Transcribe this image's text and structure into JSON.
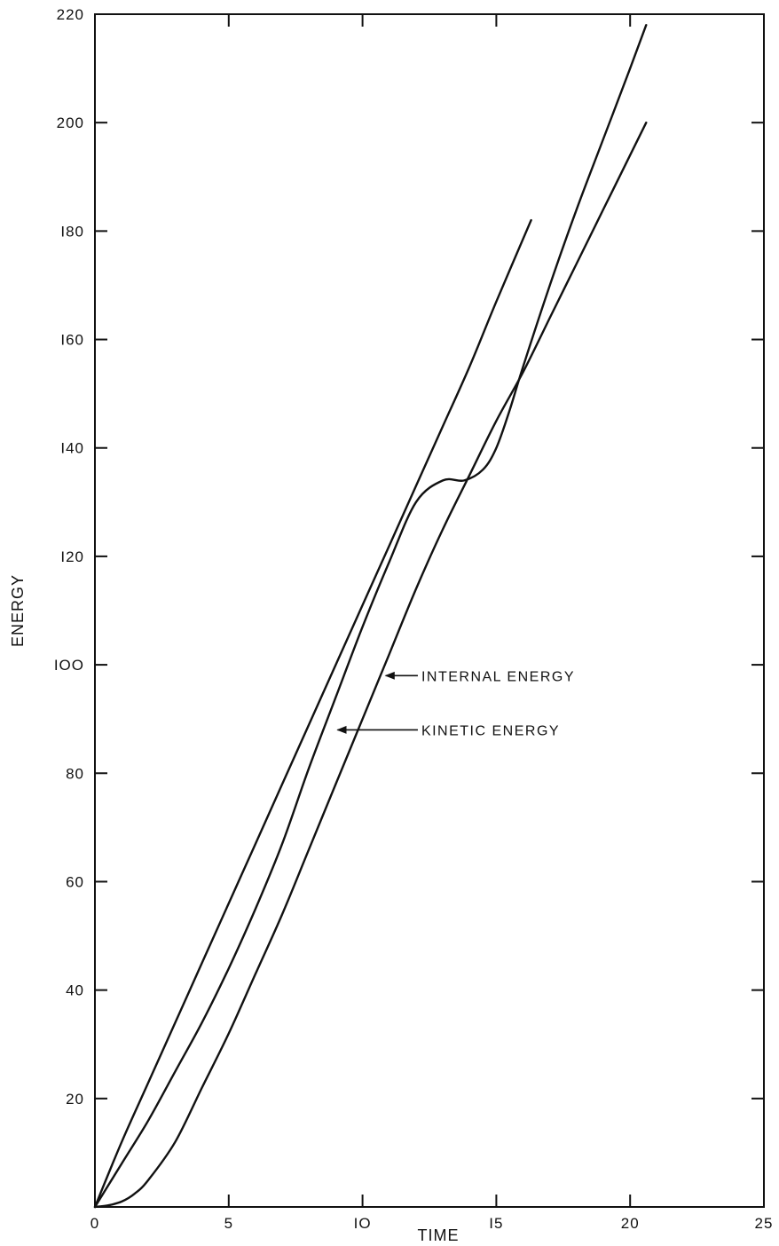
{
  "chart_data": {
    "type": "line",
    "title": "",
    "xlabel": "TIME",
    "ylabel": "ENERGY",
    "xlim": [
      0,
      25
    ],
    "ylim": [
      0,
      220
    ],
    "x_ticks": [
      0,
      5,
      10,
      15,
      20,
      25
    ],
    "x_tick_labels": [
      "0",
      "5",
      "IO",
      "I5",
      "20",
      "25"
    ],
    "y_ticks": [
      20,
      40,
      60,
      80,
      100,
      120,
      140,
      160,
      180,
      200,
      220
    ],
    "y_tick_labels": [
      "20",
      "40",
      "60",
      "80",
      "IOO",
      "I20",
      "I40",
      "I60",
      "I80",
      "200",
      "220"
    ],
    "grid": false,
    "ink_color": "#111111",
    "series": [
      {
        "key": "upper",
        "x": [
          0,
          1,
          2,
          3,
          4,
          5,
          6,
          7,
          8,
          9,
          10,
          11,
          12,
          13,
          14,
          15,
          16.3
        ],
        "y": [
          0,
          12,
          23,
          34,
          45,
          56,
          67,
          78,
          89,
          100,
          111,
          122,
          133,
          144,
          155,
          167,
          182
        ]
      },
      {
        "name": "KINETIC ENERGY",
        "key": "kinetic",
        "x": [
          0,
          1,
          2,
          3,
          4,
          5,
          6,
          7,
          8,
          9,
          10,
          11,
          12,
          13,
          13.8,
          14.5,
          15,
          15.5,
          16,
          17,
          18,
          19,
          20,
          20.6
        ],
        "y": [
          0,
          8,
          16,
          25,
          34,
          44,
          55,
          67,
          81,
          94,
          107,
          119,
          130,
          134,
          134,
          136,
          140,
          147,
          155,
          170,
          184,
          197,
          210,
          218
        ],
        "label_anchor": [
          9,
          88
        ]
      },
      {
        "name": "INTERNAL ENERGY",
        "key": "internal",
        "x": [
          0,
          0.5,
          1,
          1.5,
          2,
          3,
          4,
          5,
          6,
          7,
          8,
          9,
          10,
          11,
          12,
          13,
          14,
          15,
          16,
          17,
          18,
          19,
          20,
          20.6
        ],
        "y": [
          0,
          0.3,
          1,
          2.5,
          5,
          12,
          22,
          32,
          43,
          54,
          66,
          78,
          90,
          102,
          114,
          125,
          135,
          145,
          154,
          164,
          174,
          184,
          194,
          200
        ],
        "label_anchor": [
          10.8,
          98
        ]
      }
    ],
    "annotations": [
      {
        "text": "INTERNAL ENERGY",
        "points_to": [
          10.8,
          98
        ],
        "text_at": [
          12.2,
          98
        ]
      },
      {
        "text": "KINETIC ENERGY",
        "points_to": [
          9,
          88
        ],
        "text_at": [
          12.2,
          88
        ]
      }
    ]
  }
}
